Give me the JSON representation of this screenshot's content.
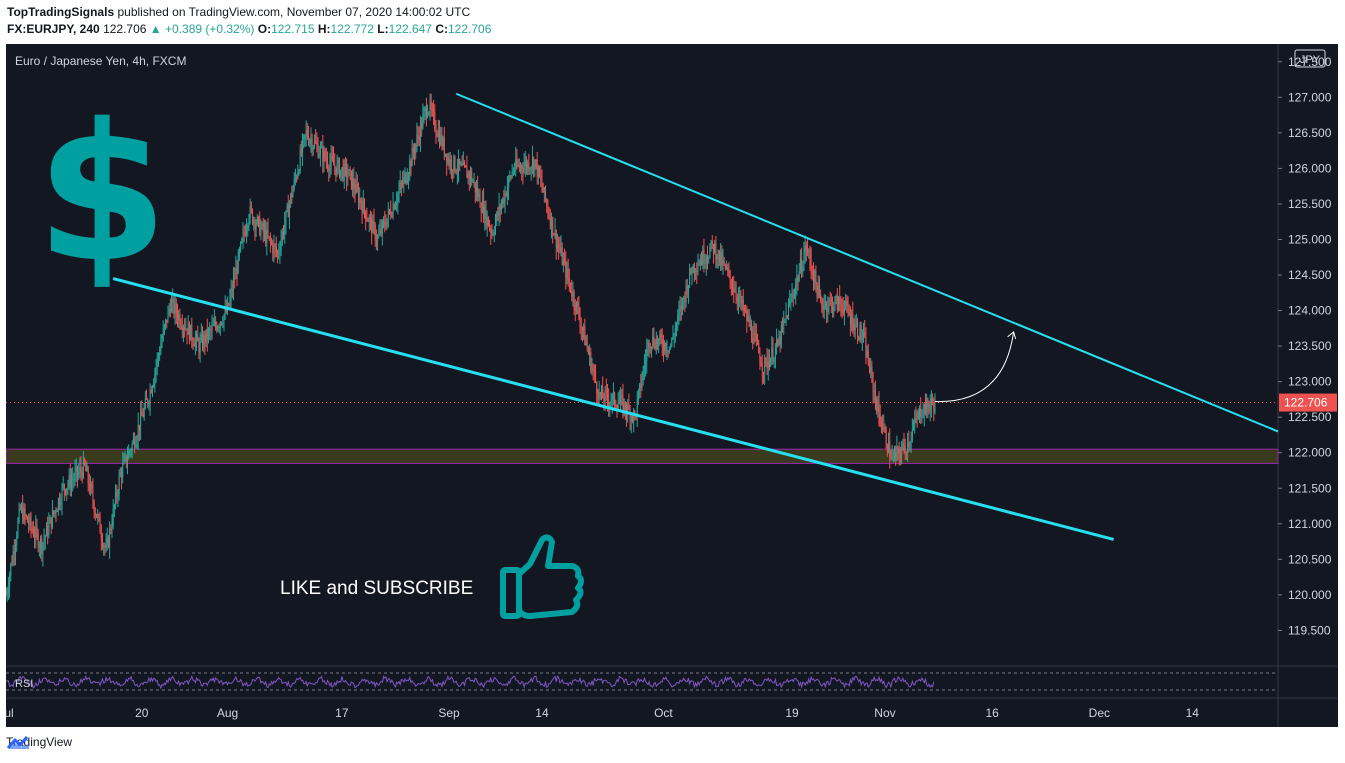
{
  "header": {
    "publisher": "TopTradingSignals",
    "published_text": "published on TradingView.com, November 07, 2020 14:00:02 UTC",
    "symbol": "FX:EURJPY, 240",
    "last": "122.706",
    "change": "+0.389 (+0.32%)",
    "open_label": "O:",
    "open": "122.715",
    "high_label": "H:",
    "high": "122.772",
    "low_label": "L:",
    "low": "122.647",
    "close_label": "C:",
    "close": "122.706"
  },
  "chart_title": "Euro / Japanese Yen, 4h, FXCM",
  "currency_button": "JPY",
  "rsi_label": "RSI",
  "overlay_text": "LIKE and SUBSCRIBE",
  "footer": {
    "brand": "TradingView"
  },
  "colors": {
    "background": "#131722",
    "up": "#26a69a",
    "down": "#ef5350",
    "trendline": "#26e0f0",
    "support_zone": "#3a3a1f",
    "support_border": "#9c27b0",
    "price_tag": "#ef5350",
    "dollar_icon": "#00a0a0"
  },
  "icons": [
    "dollar-sign-icon",
    "thumbs-up-icon",
    "tradingview-logo-icon"
  ],
  "chart_data": {
    "type": "candlestick",
    "title": "Euro / Japanese Yen, 4h, FXCM",
    "ylim": [
      119.0,
      127.75
    ],
    "y_ticks": [
      127.5,
      127.0,
      126.5,
      126.0,
      125.5,
      125.0,
      124.5,
      124.0,
      123.5,
      123.0,
      122.5,
      122.0,
      121.5,
      121.0,
      120.5,
      120.0,
      119.5
    ],
    "y_tick_labels": [
      "127.500",
      "127.000",
      "126.500",
      "126.000",
      "125.500",
      "125.000",
      "124.500",
      "124.000",
      "123.500",
      "123.000",
      "122.500",
      "122.000",
      "121.500",
      "121.000",
      "120.500",
      "120.000",
      "119.500"
    ],
    "x_labels": [
      "Jul",
      "20",
      "Aug",
      "17",
      "Sep",
      "14",
      "Oct",
      "19",
      "Nov",
      "16",
      "Dec",
      "14"
    ],
    "x_label_days": [
      0,
      19,
      31,
      47,
      62,
      75,
      92,
      110,
      123,
      138,
      153,
      166
    ],
    "x_range_days": [
      0,
      178
    ],
    "last_price": 122.706,
    "last_price_label": "122.706",
    "price_path": [
      {
        "day": 0,
        "price": 120.0
      },
      {
        "day": 2,
        "price": 121.2
      },
      {
        "day": 5,
        "price": 120.7
      },
      {
        "day": 8,
        "price": 121.5
      },
      {
        "day": 11,
        "price": 121.8
      },
      {
        "day": 14,
        "price": 120.6
      },
      {
        "day": 16,
        "price": 121.7
      },
      {
        "day": 18,
        "price": 122.2
      },
      {
        "day": 20,
        "price": 122.8
      },
      {
        "day": 23,
        "price": 124.1
      },
      {
        "day": 27,
        "price": 123.5
      },
      {
        "day": 31,
        "price": 124.0
      },
      {
        "day": 34,
        "price": 125.4
      },
      {
        "day": 38,
        "price": 124.8
      },
      {
        "day": 42,
        "price": 126.5
      },
      {
        "day": 45,
        "price": 126.1
      },
      {
        "day": 48,
        "price": 125.9
      },
      {
        "day": 52,
        "price": 125.0
      },
      {
        "day": 56,
        "price": 125.9
      },
      {
        "day": 59,
        "price": 126.9
      },
      {
        "day": 62,
        "price": 126.1
      },
      {
        "day": 65,
        "price": 125.9
      },
      {
        "day": 68,
        "price": 125.1
      },
      {
        "day": 71,
        "price": 126.0
      },
      {
        "day": 74,
        "price": 126.1
      },
      {
        "day": 77,
        "price": 125.0
      },
      {
        "day": 80,
        "price": 124.0
      },
      {
        "day": 83,
        "price": 122.8
      },
      {
        "day": 86,
        "price": 122.7
      },
      {
        "day": 88,
        "price": 122.5
      },
      {
        "day": 90,
        "price": 123.6
      },
      {
        "day": 93,
        "price": 123.5
      },
      {
        "day": 96,
        "price": 124.6
      },
      {
        "day": 99,
        "price": 124.9
      },
      {
        "day": 102,
        "price": 124.3
      },
      {
        "day": 104,
        "price": 123.8
      },
      {
        "day": 106,
        "price": 123.2
      },
      {
        "day": 108,
        "price": 123.5
      },
      {
        "day": 110,
        "price": 124.2
      },
      {
        "day": 112,
        "price": 124.9
      },
      {
        "day": 114,
        "price": 124.1
      },
      {
        "day": 117,
        "price": 124.1
      },
      {
        "day": 120,
        "price": 123.6
      },
      {
        "day": 122,
        "price": 122.6
      },
      {
        "day": 124,
        "price": 121.9
      },
      {
        "day": 126,
        "price": 122.1
      },
      {
        "day": 128,
        "price": 122.6
      },
      {
        "day": 130,
        "price": 122.706
      }
    ],
    "support_zone": [
      121.85,
      122.05
    ],
    "upper_trendline": {
      "from": {
        "day": 63,
        "price": 127.05
      },
      "to": {
        "day": 178,
        "price": 122.3
      }
    },
    "lower_trendline": {
      "from": {
        "day": 15,
        "price": 124.45
      },
      "to": {
        "day": 155,
        "price": 120.78
      }
    },
    "projection_arrow": {
      "from": {
        "day": 130,
        "price": 122.72
      },
      "to": {
        "day": 141,
        "price": 123.7
      }
    }
  }
}
